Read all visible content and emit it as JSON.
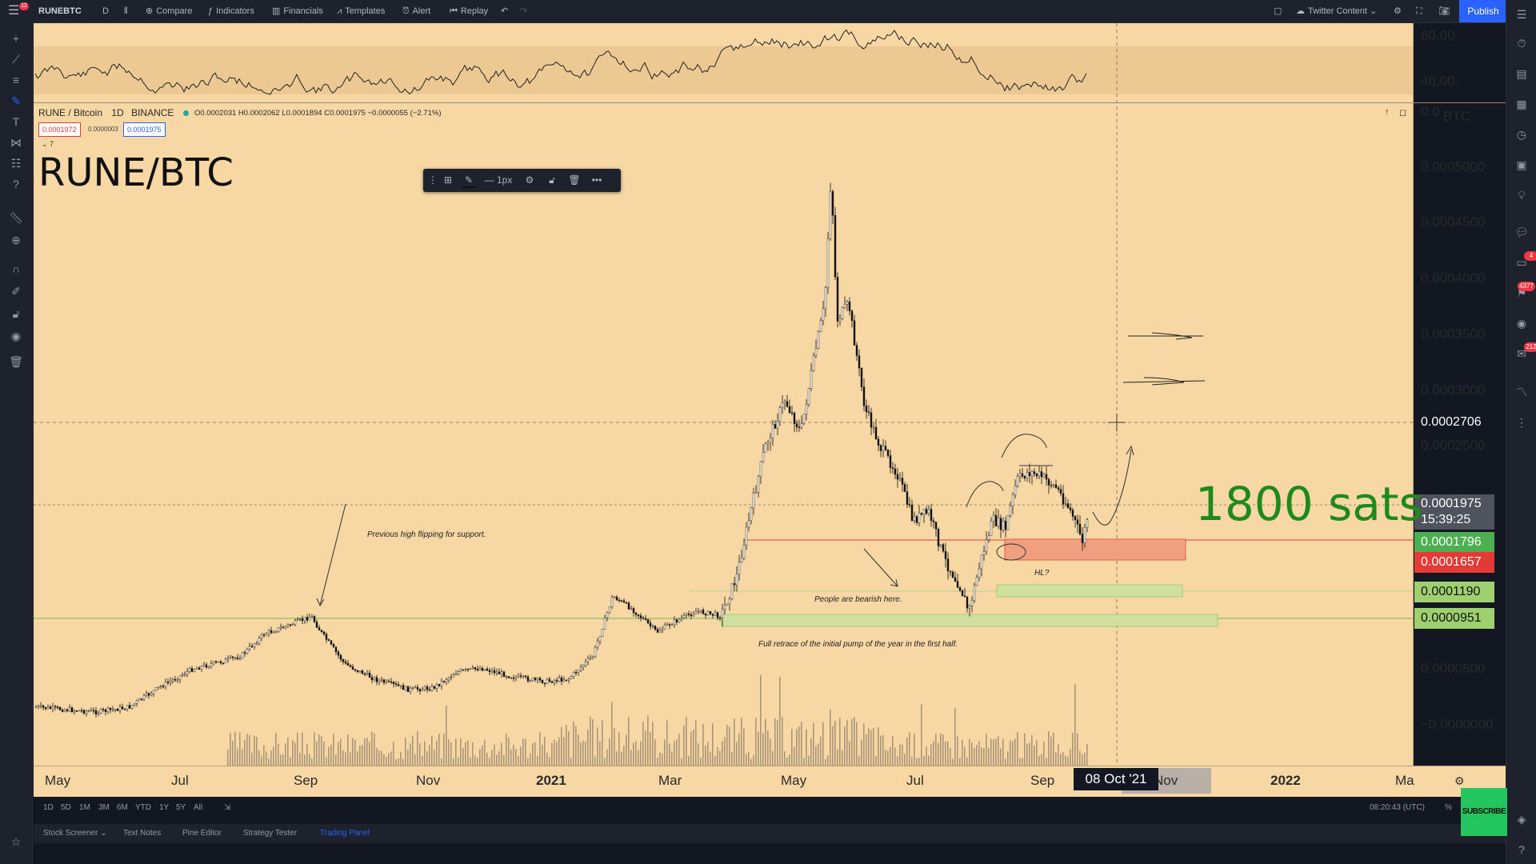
{
  "toolbar": {
    "notif_count": "12",
    "symbol": "RUNEBTC",
    "interval": "D",
    "compare": "Compare",
    "indicators": "Indicators",
    "financials": "Financials",
    "templates": "Templates",
    "alert": "Alert",
    "replay": "Replay",
    "layout_name": "Twitter Content",
    "publish": "Publish"
  },
  "legend": {
    "pair": "RUNE / Bitcoin",
    "interval": "1D",
    "exchange": "BINANCE",
    "ohlc": "O0.0002031 H0.0002062 L0.0001894 C0.0001975 −0.0000055 (−2.71%)",
    "bid": "0.0001972",
    "spread": "0.0000003",
    "ask": "0.0001975",
    "collapse": "7"
  },
  "drawing_toolbar": {
    "width_label": "1px"
  },
  "chart_title": "RUNE/BTC",
  "annotation_big": "1800 sats",
  "notes": {
    "prev_high": "Previous high flipping for support.",
    "bearish": "People are bearish here.",
    "retrace": "Full retrace of the initial pump of the year in the first half.",
    "hl": "HL?"
  },
  "oscillator_scale": [
    "80.00",
    "40.00",
    "0.0"
  ],
  "price_scale": {
    "unit": "BTC",
    "ticks": [
      "0.0005000",
      "0.0004500",
      "0.0004000",
      "0.0003500",
      "0.0003000",
      "0.0002500",
      "0.0000500",
      "−0.0000000"
    ],
    "crosshair": "0.0002706",
    "last": "0.0001975",
    "countdown": "15:39:25",
    "level_1796": "0.0001796",
    "level_1657": "0.0001657",
    "level_1190": "0.0001190",
    "level_0951": "0.0000951"
  },
  "time_scale": [
    "May",
    "Jul",
    "Sep",
    "Nov",
    "2021",
    "Mar",
    "May",
    "Jul",
    "Sep",
    "Nov",
    "2022",
    "Ma"
  ],
  "crosshair_date": "08 Oct '21",
  "range_bar": [
    "1D",
    "5D",
    "1M",
    "3M",
    "6M",
    "YTD",
    "1Y",
    "5Y",
    "All"
  ],
  "clock": "08:20:43 (UTC)",
  "bottom_tabs": [
    "Stock Screener",
    "Text Notes",
    "Pine Editor",
    "Strategy Tester",
    "Trading Panel"
  ],
  "right_badges": [
    "4",
    "4377",
    "212"
  ],
  "subscribe": "SUBSCRIBE",
  "colors": {
    "chart_bg": "#f7d7a4",
    "accent": "#2962ff",
    "support_green": "#4caf50",
    "resistance_red": "#e53935",
    "big_text_green": "#1e8a1e"
  }
}
